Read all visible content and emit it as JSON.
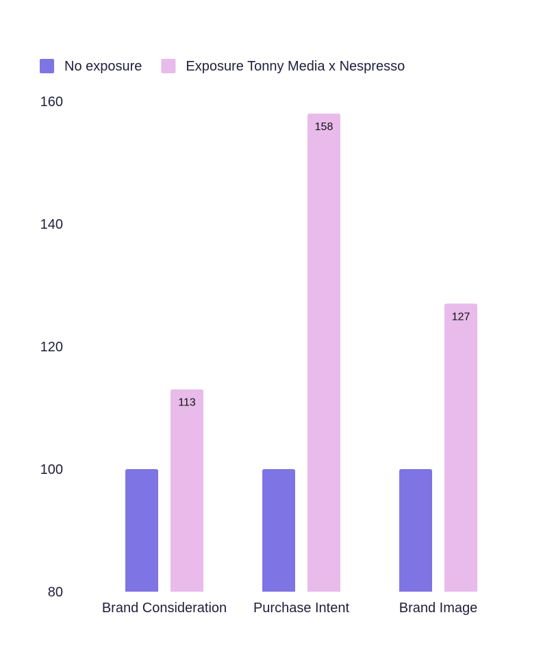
{
  "chart_data": {
    "type": "bar",
    "categories": [
      "Brand Consideration",
      "Purchase Intent",
      "Brand Image"
    ],
    "series": [
      {
        "name": "No exposure",
        "values": [
          100,
          100,
          100
        ],
        "color": "#7f74e3",
        "show_labels": false
      },
      {
        "name": "Exposure Tonny Media x Nespresso",
        "values": [
          113,
          158,
          127
        ],
        "color": "#e8bbea",
        "show_labels": true
      }
    ],
    "yticks": [
      80,
      100,
      120,
      140,
      160
    ],
    "ylim": [
      80,
      160
    ],
    "legend_position": "top-left",
    "grid": false
  }
}
